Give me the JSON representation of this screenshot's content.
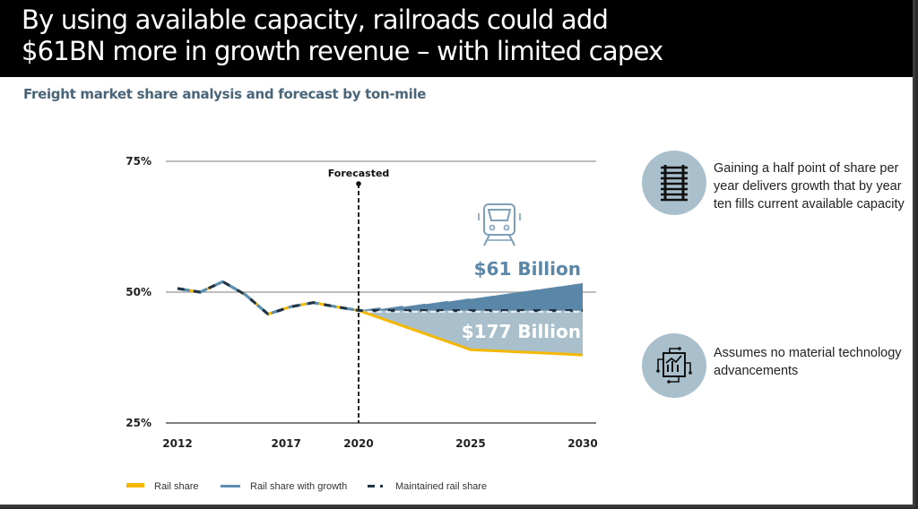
{
  "title": {
    "line1": "By using available capacity, railroads could add",
    "line2": "$61BN more in growth revenue – with limited capex"
  },
  "subtitle": "Freight market share analysis and forecast by ton-mile",
  "callouts": [
    {
      "icon": "railroad-track-icon",
      "text": "Gaining a half point of share per year  delivers  growth that by year ten fills current available  capacity"
    },
    {
      "icon": "technology-chart-icon",
      "text": "Assumes no  material technology advancements"
    }
  ],
  "colors": {
    "rail_share": "#f5b800",
    "rail_share_with_growth": "#5a8eb3",
    "maintained_rail_share": "#1f3344",
    "growth_area": "#5a86a8",
    "loss_area": "#a9bfcc",
    "circle_bg": "#a9c0cc"
  },
  "chart_data": {
    "type": "line",
    "title": "Freight market share analysis and forecast by ton-mile",
    "xlabel": "",
    "ylabel": "",
    "ylim": [
      25,
      75
    ],
    "yticks": [
      "75%",
      "50%",
      "25%"
    ],
    "ytick_values": [
      75,
      50,
      25
    ],
    "xticks": [
      "2012",
      "2017",
      "2020",
      "2025",
      "2030"
    ],
    "xtick_values": [
      2012,
      2016.8,
      2020,
      2025,
      2030
    ],
    "xlim": [
      2012,
      2030
    ],
    "grid": true,
    "forecast_marker": {
      "x": 2020,
      "label": "Forecasted"
    },
    "series": [
      {
        "name": "Rail share",
        "x": [
          2012,
          2013,
          2014,
          2015,
          2016,
          2017,
          2018,
          2019,
          2020,
          2025,
          2030
        ],
        "values": [
          50.7,
          50.0,
          52.0,
          49.5,
          45.8,
          47.2,
          48.0,
          47.2,
          46.5,
          39.0,
          38.0
        ]
      },
      {
        "name": "Rail share with growth",
        "x": [
          2012,
          2013,
          2014,
          2015,
          2016,
          2017,
          2018,
          2019,
          2020,
          2021,
          2022,
          2023,
          2024,
          2025,
          2026,
          2027,
          2028,
          2029,
          2030
        ],
        "values": [
          50.7,
          50.0,
          52.0,
          49.5,
          45.8,
          47.2,
          48.0,
          47.2,
          46.5,
          46.8,
          47.2,
          47.7,
          48.2,
          48.7,
          49.3,
          49.9,
          50.5,
          51.1,
          51.8
        ]
      },
      {
        "name": "Maintained rail share",
        "x": [
          2012,
          2013,
          2014,
          2015,
          2016,
          2017,
          2018,
          2019,
          2020,
          2030
        ],
        "values": [
          50.7,
          50.0,
          52.0,
          49.5,
          45.8,
          47.2,
          48.0,
          47.2,
          46.5,
          46.5
        ]
      }
    ],
    "annotations": [
      {
        "text": "$61 Billion",
        "region": "growth above maintained share"
      },
      {
        "text": "$177 Billion",
        "region": "loss between maintained and rail share"
      }
    ],
    "legend": {
      "placement": "bottom-left",
      "entries": [
        "Rail share",
        "Rail share with growth",
        "Maintained rail share"
      ]
    }
  }
}
